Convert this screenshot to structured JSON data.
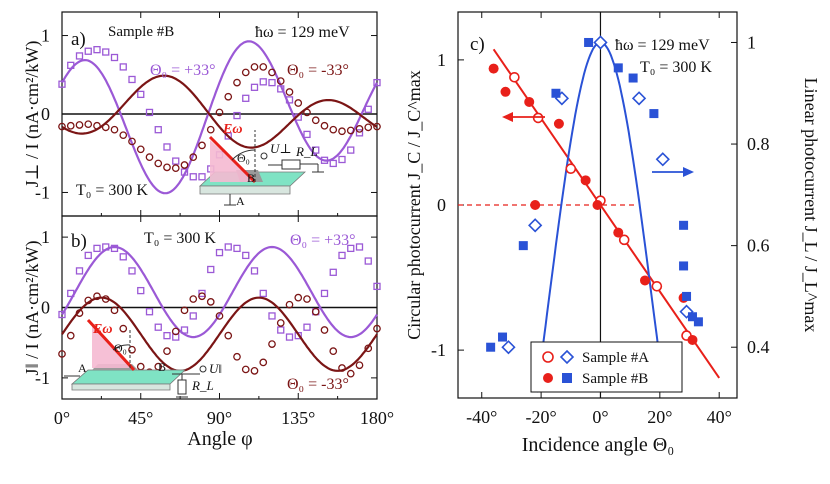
{
  "figure": {
    "panel_a": {
      "label": "a)",
      "sample": "Sample #B",
      "photon_energy": "ħω = 129 meV",
      "temperature": "T₀ = 300 K",
      "series_pos_label": "Θ₀ = +33°",
      "series_neg_label": "Θ₀ = -33°",
      "inset": {
        "field": "Eω",
        "angle": "Θ₀",
        "voltage": "U⊥",
        "resistor": "R_L",
        "contact_a": "A",
        "contact_b": "B"
      }
    },
    "panel_b": {
      "label": "b)",
      "temperature": "T₀ = 300 K",
      "series_pos_label": "Θ₀ = +33°",
      "series_neg_label": "Θ₀ = -33°",
      "inset": {
        "field": "Eω",
        "angle": "Θ₀",
        "voltage": "U‖",
        "resistor": "R_L",
        "contact_a": "A",
        "contact_b": "B"
      }
    },
    "panel_c": {
      "label": "c)",
      "photon_energy": "ħω = 129 meV",
      "temperature": "T₀ = 300 K",
      "legend_a": "Sample #A",
      "legend_b": "Sample #B"
    }
  },
  "chart_data": [
    {
      "id": "a",
      "type": "scatter",
      "title": "",
      "xlabel": "",
      "ylabel": "J⊥ / I  (nA·cm²/kW)",
      "xlim": [
        0,
        180
      ],
      "ylim": [
        -1.3,
        1.3
      ],
      "xticks": [
        0,
        45,
        90,
        135,
        180
      ],
      "yticks": [
        -1,
        0,
        1
      ],
      "ytick_labels": [
        "-1",
        "0",
        "1"
      ],
      "color_pos": "#9b59d6",
      "color_neg": "#7b1515",
      "series": [
        {
          "name": "Θ₀ = +33°",
          "fit": "y = 0.8·sin(4φ+30°) − 0.24·sin(2φ)",
          "x": [
            0,
            5,
            10,
            15,
            20,
            25,
            30,
            35,
            40,
            45,
            50,
            55,
            60,
            65,
            70,
            75,
            80,
            85,
            90,
            95,
            100,
            105,
            110,
            115,
            120,
            125,
            130,
            135,
            140,
            145,
            150,
            155,
            160,
            165,
            170,
            175,
            180
          ],
          "y": [
            0.38,
            0.62,
            0.74,
            0.8,
            0.82,
            0.79,
            0.72,
            0.6,
            0.44,
            0.25,
            0.02,
            -0.2,
            -0.42,
            -0.6,
            -0.74,
            -0.8,
            -0.8,
            -0.7,
            -0.52,
            -0.28,
            -0.02,
            0.2,
            0.34,
            0.41,
            0.4,
            0.32,
            0.18,
            -0.04,
            -0.26,
            -0.46,
            -0.59,
            -0.63,
            -0.58,
            -0.46,
            -0.24,
            0.06,
            0.4
          ]
        },
        {
          "name": "Θ₀ = -33°",
          "fit": "y = 0.33·sin(4φ−150°) + 0.18·sin(2φ)",
          "x": [
            0,
            5,
            10,
            15,
            20,
            25,
            30,
            35,
            40,
            45,
            50,
            55,
            60,
            65,
            70,
            75,
            80,
            85,
            90,
            95,
            100,
            105,
            110,
            115,
            120,
            125,
            130,
            135,
            140,
            145,
            150,
            155,
            160,
            165,
            170,
            175,
            180
          ],
          "y": [
            -0.16,
            -0.15,
            -0.14,
            -0.13,
            -0.15,
            -0.17,
            -0.2,
            -0.27,
            -0.35,
            -0.45,
            -0.55,
            -0.63,
            -0.68,
            -0.69,
            -0.65,
            -0.55,
            -0.4,
            -0.2,
            0.02,
            0.22,
            0.4,
            0.53,
            0.6,
            0.6,
            0.53,
            0.42,
            0.28,
            0.14,
            0.02,
            -0.08,
            -0.15,
            -0.2,
            -0.22,
            -0.21,
            -0.19,
            -0.17,
            -0.16
          ]
        }
      ]
    },
    {
      "id": "b",
      "type": "scatter",
      "title": "",
      "xlabel": "Angle φ",
      "ylabel": "J‖ / I  (nA·cm²/kW)",
      "xlim": [
        0,
        180
      ],
      "ylim": [
        -1.3,
        1.3
      ],
      "xticks": [
        0,
        45,
        90,
        135,
        180
      ],
      "xtick_labels": [
        "0°",
        "45°",
        "90°",
        "135°",
        "180°"
      ],
      "yticks": [
        -1,
        0,
        1
      ],
      "ytick_labels": [
        "-1",
        "0",
        "1"
      ],
      "series": [
        {
          "name": "Θ₀ = +33°",
          "fit": "y = 0.22 + 0.64·cos(4(φ−30°))",
          "x": [
            0,
            5,
            10,
            15,
            20,
            25,
            30,
            35,
            40,
            45,
            50,
            55,
            60,
            65,
            70,
            75,
            80,
            85,
            90,
            95,
            100,
            105,
            110,
            115,
            120,
            125,
            130,
            135,
            140,
            145,
            150,
            155,
            160,
            165,
            170,
            175,
            180
          ],
          "y": [
            -0.1,
            0.2,
            0.52,
            0.74,
            0.84,
            0.86,
            0.84,
            0.72,
            0.52,
            0.24,
            -0.06,
            -0.28,
            -0.4,
            -0.42,
            -0.32,
            -0.12,
            0.2,
            0.54,
            0.78,
            0.86,
            0.84,
            0.74,
            0.52,
            0.2,
            -0.12,
            -0.32,
            -0.42,
            -0.4,
            -0.28,
            -0.06,
            0.2,
            0.5,
            0.74,
            0.84,
            0.86,
            0.66,
            0.3
          ]
        },
        {
          "name": "Θ₀ = -33°",
          "fit": "y = −0.38 + 0.52·cos(4(φ−22.5°))",
          "x": [
            0,
            5,
            10,
            15,
            20,
            25,
            30,
            35,
            40,
            45,
            50,
            55,
            60,
            65,
            70,
            75,
            80,
            85,
            90,
            95,
            100,
            105,
            110,
            115,
            120,
            125,
            130,
            135,
            140,
            145,
            150,
            155,
            160,
            165,
            170,
            175,
            180
          ],
          "y": [
            -0.66,
            -0.4,
            -0.08,
            0.1,
            0.16,
            0.12,
            -0.04,
            -0.3,
            -0.6,
            -0.84,
            -0.92,
            -0.84,
            -0.62,
            -0.34,
            -0.04,
            0.12,
            0.16,
            0.08,
            -0.12,
            -0.4,
            -0.7,
            -0.88,
            -0.9,
            -0.78,
            -0.52,
            -0.22,
            0.04,
            0.14,
            0.12,
            -0.06,
            -0.32,
            -0.62,
            -0.86,
            -0.94,
            -0.82,
            -0.58,
            -0.3
          ]
        }
      ]
    },
    {
      "id": "c",
      "type": "scatter",
      "title": "",
      "xlabel": "Incidence angle Θ₀",
      "ylabel": "Circular photocurrent J_C / J_C^max",
      "ylabel_right": "Linear photocurrent J_L / J_L^max",
      "xlim": [
        -48,
        46
      ],
      "ylim": [
        -1.33,
        1.33
      ],
      "ylim_right": [
        0.3,
        1.06
      ],
      "xticks": [
        -40,
        -20,
        0,
        20,
        40
      ],
      "xtick_labels": [
        "-40°",
        "-20°",
        "0°",
        "20°",
        "40°"
      ],
      "yticks": [
        -1,
        0,
        1
      ],
      "ytick_labels": [
        "-1",
        "0",
        "1"
      ],
      "yticks_right": [
        0.4,
        0.6,
        0.8,
        1.0
      ],
      "ytick_labels_right": [
        "0.4",
        "0.6",
        "0.8",
        "1"
      ],
      "circular_fit": "J_C = −0.0298·Θ₀",
      "linear_fit": "J_L = cos²(Θ₀·2.61)",
      "color_circular": "#e8201a",
      "color_linear": "#2a52d6",
      "series": [
        {
          "name": "Sample #A (circular)",
          "axis": "left",
          "marker": "open-circle",
          "x": [
            -29,
            -21,
            -10,
            0,
            8,
            19,
            29
          ],
          "y": [
            0.88,
            0.6,
            0.25,
            0.03,
            -0.24,
            -0.56,
            -0.9
          ]
        },
        {
          "name": "Sample #B (circular)",
          "axis": "left",
          "marker": "filled-circle",
          "x": [
            -36,
            -32,
            -24,
            -22,
            -14,
            -5,
            -1,
            6,
            15,
            28,
            31
          ],
          "y": [
            0.94,
            0.78,
            0.71,
            0.0,
            0.56,
            0.17,
            0.0,
            -0.19,
            -0.52,
            -0.64,
            -0.93
          ]
        },
        {
          "name": "Sample #A (linear)",
          "axis": "right",
          "marker": "open-diamond",
          "x": [
            -31,
            -22,
            -13,
            0,
            13,
            21,
            29
          ],
          "y": [
            0.4,
            0.64,
            0.89,
            1.0,
            0.89,
            0.77,
            0.47
          ]
        },
        {
          "name": "Sample #B (linear)",
          "axis": "right",
          "marker": "filled-square",
          "x": [
            -37,
            -33,
            -26,
            -15,
            -4,
            6,
            11,
            18,
            28,
            28,
            29,
            31,
            33
          ],
          "y": [
            0.4,
            0.42,
            0.6,
            0.9,
            1.0,
            0.95,
            0.93,
            0.86,
            0.64,
            0.56,
            0.5,
            0.46,
            0.45
          ]
        }
      ]
    }
  ]
}
